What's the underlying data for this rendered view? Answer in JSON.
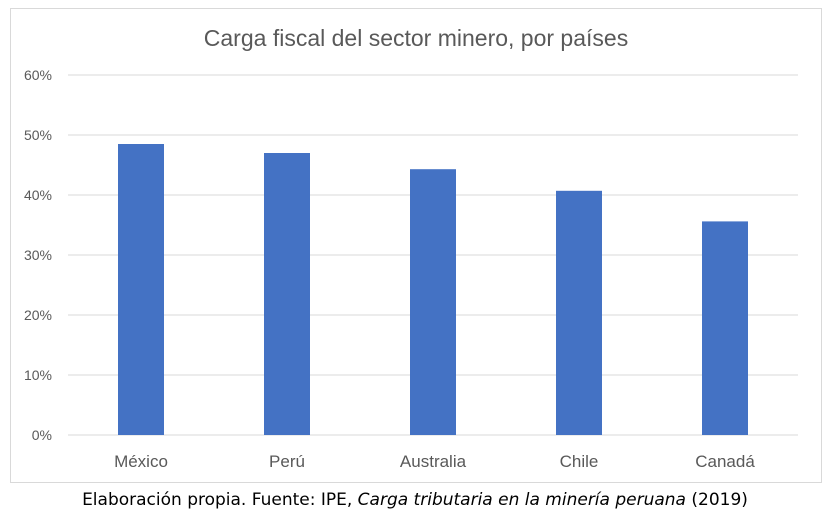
{
  "chart_data": {
    "type": "bar",
    "title": "Carga fiscal del sector minero, por países",
    "categories": [
      "México",
      "Perú",
      "Australia",
      "Chile",
      "Canadá"
    ],
    "values": [
      48.5,
      47.0,
      44.3,
      40.7,
      35.6
    ],
    "y_ticks": [
      "0%",
      "10%",
      "20%",
      "30%",
      "40%",
      "50%",
      "60%"
    ],
    "ylim": [
      0,
      60
    ],
    "grid": true,
    "legend": "none",
    "bar_color": "#4472c4",
    "grid_color": "#d9d9d9"
  },
  "caption": {
    "prefix": "Elaboración propia. Fuente: IPE, ",
    "italic": "Carga tributaria en la minería peruana",
    "suffix": " (2019)"
  }
}
